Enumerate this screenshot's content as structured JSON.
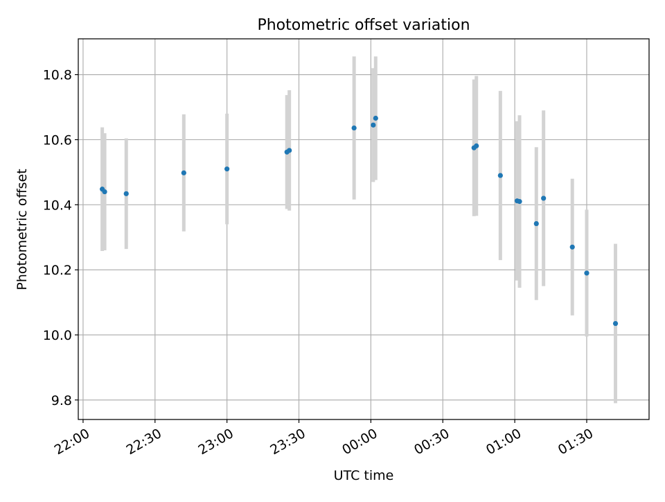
{
  "chart_data": {
    "type": "scatter",
    "title": "Photometric offset variation",
    "xlabel": "UTC time",
    "ylabel": "Photometric offset",
    "x_ticks": [
      "22:00",
      "22:30",
      "23:00",
      "23:30",
      "00:00",
      "00:30",
      "01:00",
      "01:30"
    ],
    "y_ticks": [
      "9.8",
      "10.0",
      "10.2",
      "10.4",
      "10.6",
      "10.8"
    ],
    "xlim": [
      "21:58",
      "01:56"
    ],
    "ylim": [
      9.74,
      10.91
    ],
    "grid": true,
    "colors": {
      "point": "#1f77b4",
      "errorbar": "#d3d3d3",
      "grid": "#b0b0b0"
    },
    "points": [
      {
        "x": "22:08",
        "y": 10.448,
        "err": 0.19
      },
      {
        "x": "22:09",
        "y": 10.44,
        "err": 0.18
      },
      {
        "x": "22:18",
        "y": 10.434,
        "err": 0.17
      },
      {
        "x": "22:42",
        "y": 10.498,
        "err": 0.18
      },
      {
        "x": "23:00",
        "y": 10.51,
        "err": 0.17
      },
      {
        "x": "23:25",
        "y": 10.562,
        "err": 0.175
      },
      {
        "x": "23:26",
        "y": 10.567,
        "err": 0.185
      },
      {
        "x": "23:53",
        "y": 10.636,
        "err": 0.22
      },
      {
        "x": "00:01",
        "y": 10.645,
        "err": 0.175
      },
      {
        "x": "00:02",
        "y": 10.666,
        "err": 0.19
      },
      {
        "x": "00:43",
        "y": 10.575,
        "err": 0.21
      },
      {
        "x": "00:44",
        "y": 10.581,
        "err": 0.215
      },
      {
        "x": "00:54",
        "y": 10.49,
        "err": 0.26
      },
      {
        "x": "01:01",
        "y": 10.412,
        "err": 0.245
      },
      {
        "x": "01:02",
        "y": 10.41,
        "err": 0.265
      },
      {
        "x": "01:09",
        "y": 10.342,
        "err": 0.235
      },
      {
        "x": "01:12",
        "y": 10.42,
        "err": 0.27
      },
      {
        "x": "01:24",
        "y": 10.27,
        "err": 0.21
      },
      {
        "x": "01:30",
        "y": 10.19,
        "err": 0.195
      },
      {
        "x": "01:42",
        "y": 10.035,
        "err": 0.245
      }
    ]
  }
}
